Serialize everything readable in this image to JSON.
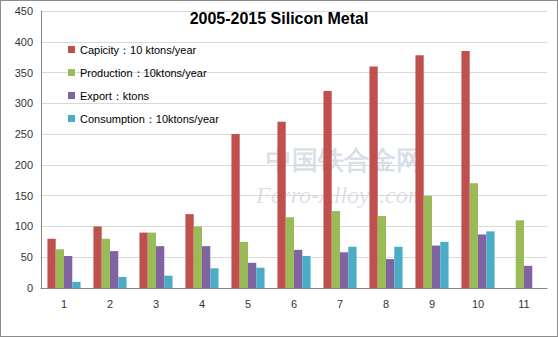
{
  "chart_data": {
    "type": "bar",
    "title": "2005-2015 Silicon Metal",
    "categories": [
      "1",
      "2",
      "3",
      "4",
      "5",
      "6",
      "7",
      "8",
      "9",
      "10",
      "11"
    ],
    "series": [
      {
        "name": "Capicity：10 ktons/year",
        "color": "#c0504d",
        "values": [
          80,
          100,
          90,
          120,
          250,
          270,
          320,
          360,
          378,
          385,
          null
        ]
      },
      {
        "name": "Production：10ktons/year",
        "color": "#9bbb59",
        "values": [
          63,
          80,
          90,
          100,
          75,
          115,
          125,
          117,
          150,
          170,
          110
        ]
      },
      {
        "name": "Export：ktons",
        "color": "#8064a2",
        "values": [
          52,
          60,
          68,
          68,
          41,
          62,
          58,
          47,
          69,
          87,
          36
        ]
      },
      {
        "name": "Consumption：10ktons/year",
        "color": "#4bacc6",
        "values": [
          10,
          18,
          20,
          32,
          33,
          52,
          67,
          67,
          75,
          92,
          null
        ]
      }
    ],
    "annotations": [
      "中国铁合金网",
      "Ferro-Alloys.com"
    ],
    "ylim": [
      0,
      450
    ],
    "yticks": [
      0,
      50,
      100,
      150,
      200,
      250,
      300,
      350,
      400,
      450
    ],
    "grid": true,
    "legend": "upper left"
  }
}
